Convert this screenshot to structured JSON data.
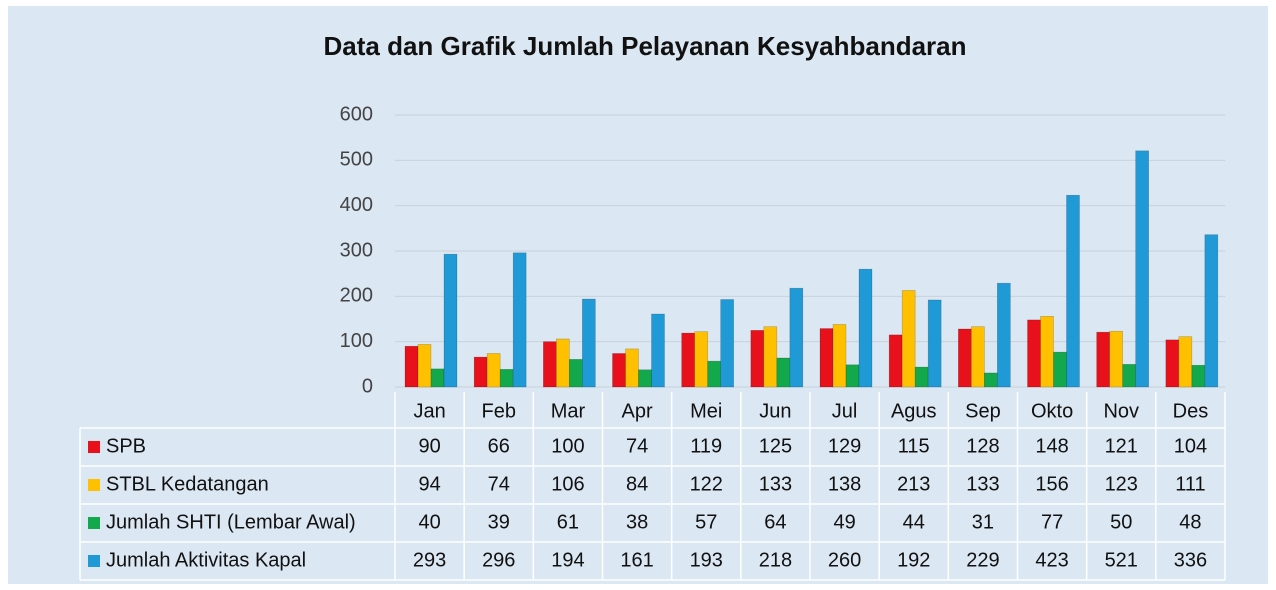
{
  "chart_data": {
    "type": "bar",
    "title": "Data dan Grafik Jumlah Pelayanan Kesyahbandaran",
    "categories": [
      "Jan",
      "Feb",
      "Mar",
      "Apr",
      "Mei",
      "Jun",
      "Jul",
      "Agus",
      "Sep",
      "Okto",
      "Nov",
      "Des"
    ],
    "series": [
      {
        "name": "SPB",
        "color": "#e8101a",
        "values": [
          90,
          66,
          100,
          74,
          119,
          125,
          129,
          115,
          128,
          148,
          121,
          104
        ]
      },
      {
        "name": "STBL Kedatangan",
        "color": "#ffc000",
        "values": [
          94,
          74,
          106,
          84,
          122,
          133,
          138,
          213,
          133,
          156,
          123,
          111
        ]
      },
      {
        "name": "Jumlah SHTI (Lembar Awal)",
        "color": "#12a84b",
        "values": [
          40,
          39,
          61,
          38,
          57,
          64,
          49,
          44,
          31,
          77,
          50,
          48
        ]
      },
      {
        "name": "Jumlah Aktivitas Kapal",
        "color": "#1f9ad6",
        "values": [
          293,
          296,
          194,
          161,
          193,
          218,
          260,
          192,
          229,
          423,
          521,
          336
        ]
      }
    ],
    "ylim": [
      0,
      600
    ],
    "yticks": [
      0,
      100,
      200,
      300,
      400,
      500,
      600
    ],
    "grid": true
  }
}
